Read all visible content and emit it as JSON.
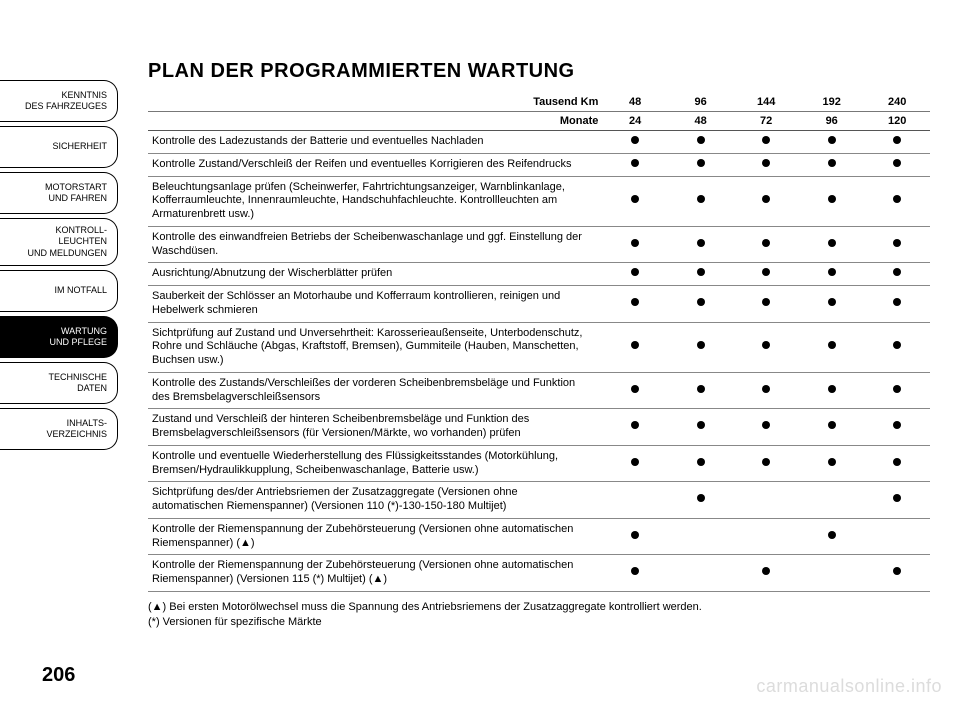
{
  "page_number": "206",
  "title": "PLAN DER PROGRAMMIERTEN WARTUNG",
  "sidebar": {
    "tabs": [
      {
        "label": "KENNTNIS\nDES FAHRZEUGES",
        "active": false
      },
      {
        "label": "SICHERHEIT",
        "active": false
      },
      {
        "label": "MOTORSTART\nUND FAHREN",
        "active": false
      },
      {
        "label": "KONTROLL-\nLEUCHTEN\nUND MELDUNGEN",
        "active": false
      },
      {
        "label": "IM NOTFALL",
        "active": false
      },
      {
        "label": "WARTUNG\nUND PFLEGE",
        "active": true
      },
      {
        "label": "TECHNISCHE\nDATEN",
        "active": false
      },
      {
        "label": "INHALTS-\nVERZEICHNIS",
        "active": false
      }
    ]
  },
  "table": {
    "header_km_label": "Tausend Km",
    "header_months_label": "Monate",
    "km_values": [
      "48",
      "96",
      "144",
      "192",
      "240"
    ],
    "month_values": [
      "24",
      "48",
      "72",
      "96",
      "120"
    ],
    "rows": [
      {
        "desc": "Kontrolle des Ladezustands der Batterie und eventuelles Nachladen",
        "marks": [
          true,
          true,
          true,
          true,
          true
        ]
      },
      {
        "desc": "Kontrolle Zustand/Verschleiß der Reifen und eventuelles Korrigieren des Reifendrucks",
        "marks": [
          true,
          true,
          true,
          true,
          true
        ]
      },
      {
        "desc": "Beleuchtungsanlage prüfen (Scheinwerfer, Fahrtrichtungsanzeiger, Warnblinkanlage, Kofferraumleuchte, Innenraumleuchte, Handschuhfachleuchte. Kontrollleuchten am Armaturenbrett usw.)",
        "marks": [
          true,
          true,
          true,
          true,
          true
        ]
      },
      {
        "desc": "Kontrolle des einwandfreien Betriebs der Scheibenwaschanlage und ggf. Einstellung der Waschdüsen.",
        "marks": [
          true,
          true,
          true,
          true,
          true
        ]
      },
      {
        "desc": "Ausrichtung/Abnutzung der Wischerblätter prüfen",
        "marks": [
          true,
          true,
          true,
          true,
          true
        ]
      },
      {
        "desc": "Sauberkeit der Schlösser an Motorhaube und Kofferraum kontrollieren, reinigen und Hebelwerk schmieren",
        "marks": [
          true,
          true,
          true,
          true,
          true
        ]
      },
      {
        "desc": "Sichtprüfung auf Zustand und Unversehrtheit: Karosserieaußenseite, Unterbodenschutz, Rohre und Schläuche (Abgas, Kraftstoff, Bremsen), Gummiteile (Hauben, Manschetten, Buchsen usw.)",
        "marks": [
          true,
          true,
          true,
          true,
          true
        ]
      },
      {
        "desc": "Kontrolle des Zustands/Verschleißes der vorderen Scheibenbremsbeläge und Funktion des Bremsbelagverschleißsensors",
        "marks": [
          true,
          true,
          true,
          true,
          true
        ]
      },
      {
        "desc": "Zustand und Verschleiß der hinteren Scheibenbremsbeläge und Funktion des Bremsbelagverschleißsensors (für Versionen/Märkte, wo vorhanden) prüfen",
        "marks": [
          true,
          true,
          true,
          true,
          true
        ]
      },
      {
        "desc": "Kontrolle und eventuelle Wiederherstellung des Flüssigkeitsstandes (Motorkühlung, Bremsen/Hydraulikkupplung, Scheibenwaschanlage, Batterie usw.)",
        "marks": [
          true,
          true,
          true,
          true,
          true
        ]
      },
      {
        "desc": "Sichtprüfung des/der Antriebsriemen der Zusatzaggregate (Versionen ohne automatischen Riemenspanner) (Versionen 110 (*)-130-150-180 Multijet)",
        "marks": [
          false,
          true,
          false,
          false,
          true
        ]
      },
      {
        "desc": "Kontrolle der Riemenspannung der Zubehörsteuerung (Versionen ohne automatischen Riemenspanner) (▲)",
        "marks": [
          true,
          false,
          false,
          true,
          false
        ]
      },
      {
        "desc": "Kontrolle der Riemenspannung der Zubehörsteuerung (Versionen ohne automatischen Riemenspanner) (Versionen 115 (*) Multijet) (▲)",
        "marks": [
          true,
          false,
          true,
          false,
          true
        ]
      }
    ]
  },
  "footnotes": {
    "line1": "(▲) Bei ersten Motorölwechsel muss die Spannung des Antriebsriemens der Zusatzaggregate kontrolliert werden.",
    "line2": "(*) Versionen für spezifische Märkte"
  },
  "watermark": "carmanualsonline.info",
  "colors": {
    "background": "#ffffff",
    "text": "#000000",
    "active_tab_bg": "#000000",
    "active_tab_text": "#ffffff",
    "border": "#888888",
    "watermark": "#dcdcdc"
  }
}
